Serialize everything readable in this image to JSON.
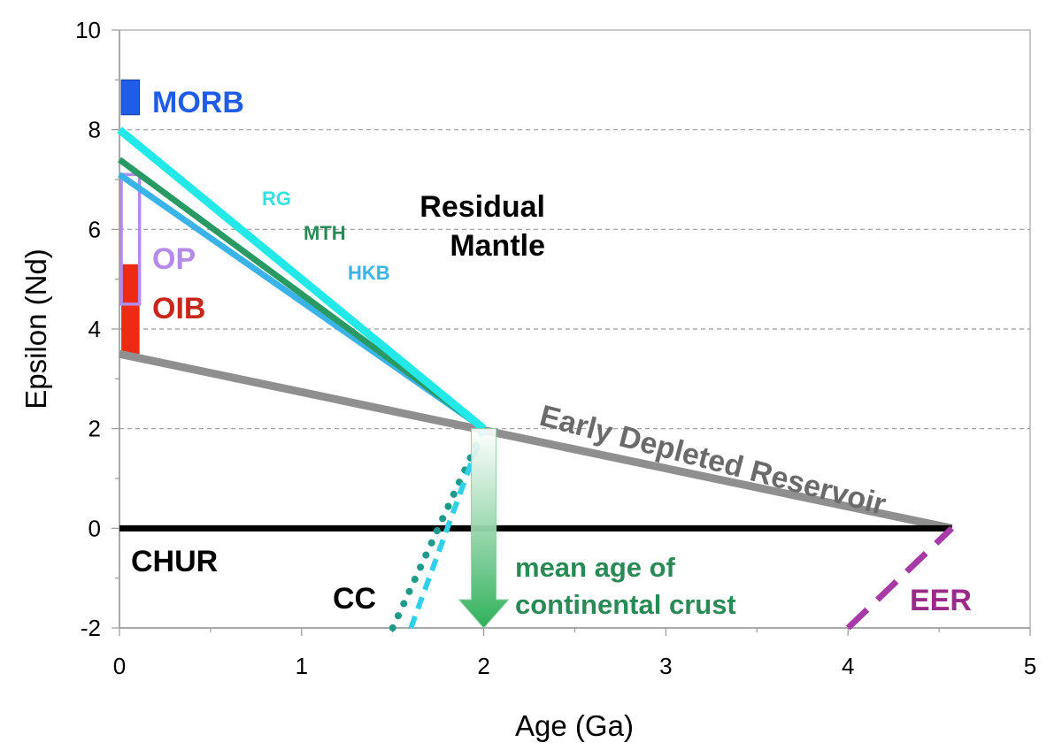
{
  "chart_data": {
    "type": "line",
    "xlabel": "Age (Ga)",
    "ylabel": "Epsilon (Nd)",
    "xlim": [
      0,
      5
    ],
    "ylim": [
      -2,
      10
    ],
    "xticks": [
      "0",
      "1",
      "2",
      "3",
      "4",
      "5"
    ],
    "yticks": [
      "-2",
      "0",
      "2",
      "4",
      "6",
      "8",
      "10"
    ],
    "y_gridlines": [
      2,
      4,
      6,
      8
    ],
    "colors": {
      "RG": "#22e8e8",
      "MTH": "#2a9a64",
      "HKB": "#3ab4e8",
      "EDR": "#8f8f8f",
      "CHUR": "#000000",
      "EER": "#a83aa8",
      "CC_dotted": "#1e9a8a",
      "CC_dashed": "#2fd0ea",
      "arrow": "#2fb05a",
      "MORB": "#1f5ce8",
      "OP": "#b58ae8",
      "OIB": "#ee2a14"
    },
    "series": [
      {
        "key": "RG",
        "name": "RG",
        "x": [
          0,
          2
        ],
        "y": [
          8.0,
          2.0
        ],
        "style": "solid"
      },
      {
        "key": "MTH",
        "name": "MTH",
        "x": [
          0,
          2
        ],
        "y": [
          7.4,
          2.0
        ],
        "style": "solid"
      },
      {
        "key": "HKB",
        "name": "HKB",
        "x": [
          0,
          2
        ],
        "y": [
          7.1,
          2.0
        ],
        "style": "solid"
      },
      {
        "key": "EDR",
        "name": "Early Depleted Reservoir",
        "x": [
          0,
          4.57
        ],
        "y": [
          3.5,
          0.0
        ],
        "style": "solid"
      },
      {
        "key": "CHUR",
        "name": "CHUR",
        "x": [
          0,
          4.57
        ],
        "y": [
          0.0,
          0.0
        ],
        "style": "solid"
      },
      {
        "key": "EER",
        "name": "EER",
        "x": [
          4.0,
          4.57
        ],
        "y": [
          -2.0,
          0.0
        ],
        "style": "dashed"
      },
      {
        "key": "CC_dotted",
        "name": "CC",
        "x": [
          1.5,
          2.0
        ],
        "y": [
          -2.0,
          2.0
        ],
        "style": "dotted"
      },
      {
        "key": "CC_dashed",
        "name": "CC",
        "x": [
          1.6,
          2.0
        ],
        "y": [
          -2.0,
          2.0
        ],
        "style": "dashed"
      }
    ],
    "ranges": [
      {
        "key": "MORB",
        "name": "MORB",
        "x": [
          0.01,
          0.11
        ],
        "y": [
          8.3,
          9.0
        ],
        "fill": true
      },
      {
        "key": "OIB",
        "name": "OIB",
        "x": [
          0.01,
          0.11
        ],
        "y": [
          3.5,
          5.3
        ],
        "fill": true
      },
      {
        "key": "OP",
        "name": "OP",
        "x": [
          0.01,
          0.11
        ],
        "y": [
          4.5,
          7.1
        ],
        "fill": false
      }
    ],
    "arrow": {
      "x": 2.0,
      "y_from": 2.0,
      "y_to": -2.0,
      "label_line1": "mean age of",
      "label_line2": "continental crust"
    },
    "labels": {
      "MORB": "MORB",
      "OP": "OP",
      "OIB": "OIB",
      "RG": "RG",
      "MTH": "MTH",
      "HKB": "HKB",
      "residual_1": "Residual",
      "residual_2": "Mantle",
      "EDR": "Early Depleted Reservoir",
      "CHUR": "CHUR",
      "CC": "CC",
      "EER": "EER"
    }
  }
}
